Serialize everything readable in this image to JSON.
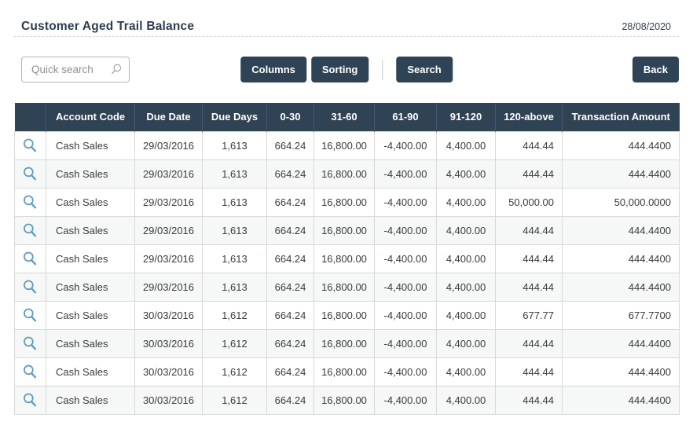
{
  "page": {
    "title": "Customer Aged Trail Balance",
    "date": "28/08/2020"
  },
  "toolbar": {
    "quick_search": {
      "placeholder": "Quick search",
      "value": ""
    },
    "columns_label": "Columns",
    "sorting_label": "Sorting",
    "search_label": "Search",
    "back_label": "Back"
  },
  "colors": {
    "header_navy": "#2f4354",
    "button_navy": "#2e4456",
    "row_icon_blue": "#5b9bc2",
    "stripe_gray": "#f6f7f7",
    "border_gray": "#d8d8d8"
  },
  "icons": {
    "row_action": "magnifier-icon",
    "search_field": "magnifier-icon"
  },
  "table": {
    "columns": [
      "",
      "Account Code",
      "Due Date",
      "Due Days",
      "0-30",
      "31-60",
      "61-90",
      "91-120",
      "120-above",
      "Transaction Amount"
    ],
    "rows": [
      {
        "account_code": "Cash Sales",
        "due_date": "29/03/2016",
        "due_days": "1,613",
        "c0_30": "664.24",
        "c31_60": "16,800.00",
        "c61_90": "-4,400.00",
        "c91_120": "4,400.00",
        "c120_above": "444.44",
        "transaction_amount": "444.4400"
      },
      {
        "account_code": "Cash Sales",
        "due_date": "29/03/2016",
        "due_days": "1,613",
        "c0_30": "664.24",
        "c31_60": "16,800.00",
        "c61_90": "-4,400.00",
        "c91_120": "4,400.00",
        "c120_above": "444.44",
        "transaction_amount": "444.4400"
      },
      {
        "account_code": "Cash Sales",
        "due_date": "29/03/2016",
        "due_days": "1,613",
        "c0_30": "664.24",
        "c31_60": "16,800.00",
        "c61_90": "-4,400.00",
        "c91_120": "4,400.00",
        "c120_above": "50,000.00",
        "transaction_amount": "50,000.0000"
      },
      {
        "account_code": "Cash Sales",
        "due_date": "29/03/2016",
        "due_days": "1,613",
        "c0_30": "664.24",
        "c31_60": "16,800.00",
        "c61_90": "-4,400.00",
        "c91_120": "4,400.00",
        "c120_above": "444.44",
        "transaction_amount": "444.4400"
      },
      {
        "account_code": "Cash Sales",
        "due_date": "29/03/2016",
        "due_days": "1,613",
        "c0_30": "664.24",
        "c31_60": "16,800.00",
        "c61_90": "-4,400.00",
        "c91_120": "4,400.00",
        "c120_above": "444.44",
        "transaction_amount": "444.4400"
      },
      {
        "account_code": "Cash Sales",
        "due_date": "29/03/2016",
        "due_days": "1,613",
        "c0_30": "664.24",
        "c31_60": "16,800.00",
        "c61_90": "-4,400.00",
        "c91_120": "4,400.00",
        "c120_above": "444.44",
        "transaction_amount": "444.4400"
      },
      {
        "account_code": "Cash Sales",
        "due_date": "30/03/2016",
        "due_days": "1,612",
        "c0_30": "664.24",
        "c31_60": "16,800.00",
        "c61_90": "-4,400.00",
        "c91_120": "4,400.00",
        "c120_above": "677.77",
        "transaction_amount": "677.7700"
      },
      {
        "account_code": "Cash Sales",
        "due_date": "30/03/2016",
        "due_days": "1,612",
        "c0_30": "664.24",
        "c31_60": "16,800.00",
        "c61_90": "-4,400.00",
        "c91_120": "4,400.00",
        "c120_above": "444.44",
        "transaction_amount": "444.4400"
      },
      {
        "account_code": "Cash Sales",
        "due_date": "30/03/2016",
        "due_days": "1,612",
        "c0_30": "664.24",
        "c31_60": "16,800.00",
        "c61_90": "-4,400.00",
        "c91_120": "4,400.00",
        "c120_above": "444.44",
        "transaction_amount": "444.4400"
      },
      {
        "account_code": "Cash Sales",
        "due_date": "30/03/2016",
        "due_days": "1,612",
        "c0_30": "664.24",
        "c31_60": "16,800.00",
        "c61_90": "-4,400.00",
        "c91_120": "4,400.00",
        "c120_above": "444.44",
        "transaction_amount": "444.4400"
      }
    ]
  }
}
